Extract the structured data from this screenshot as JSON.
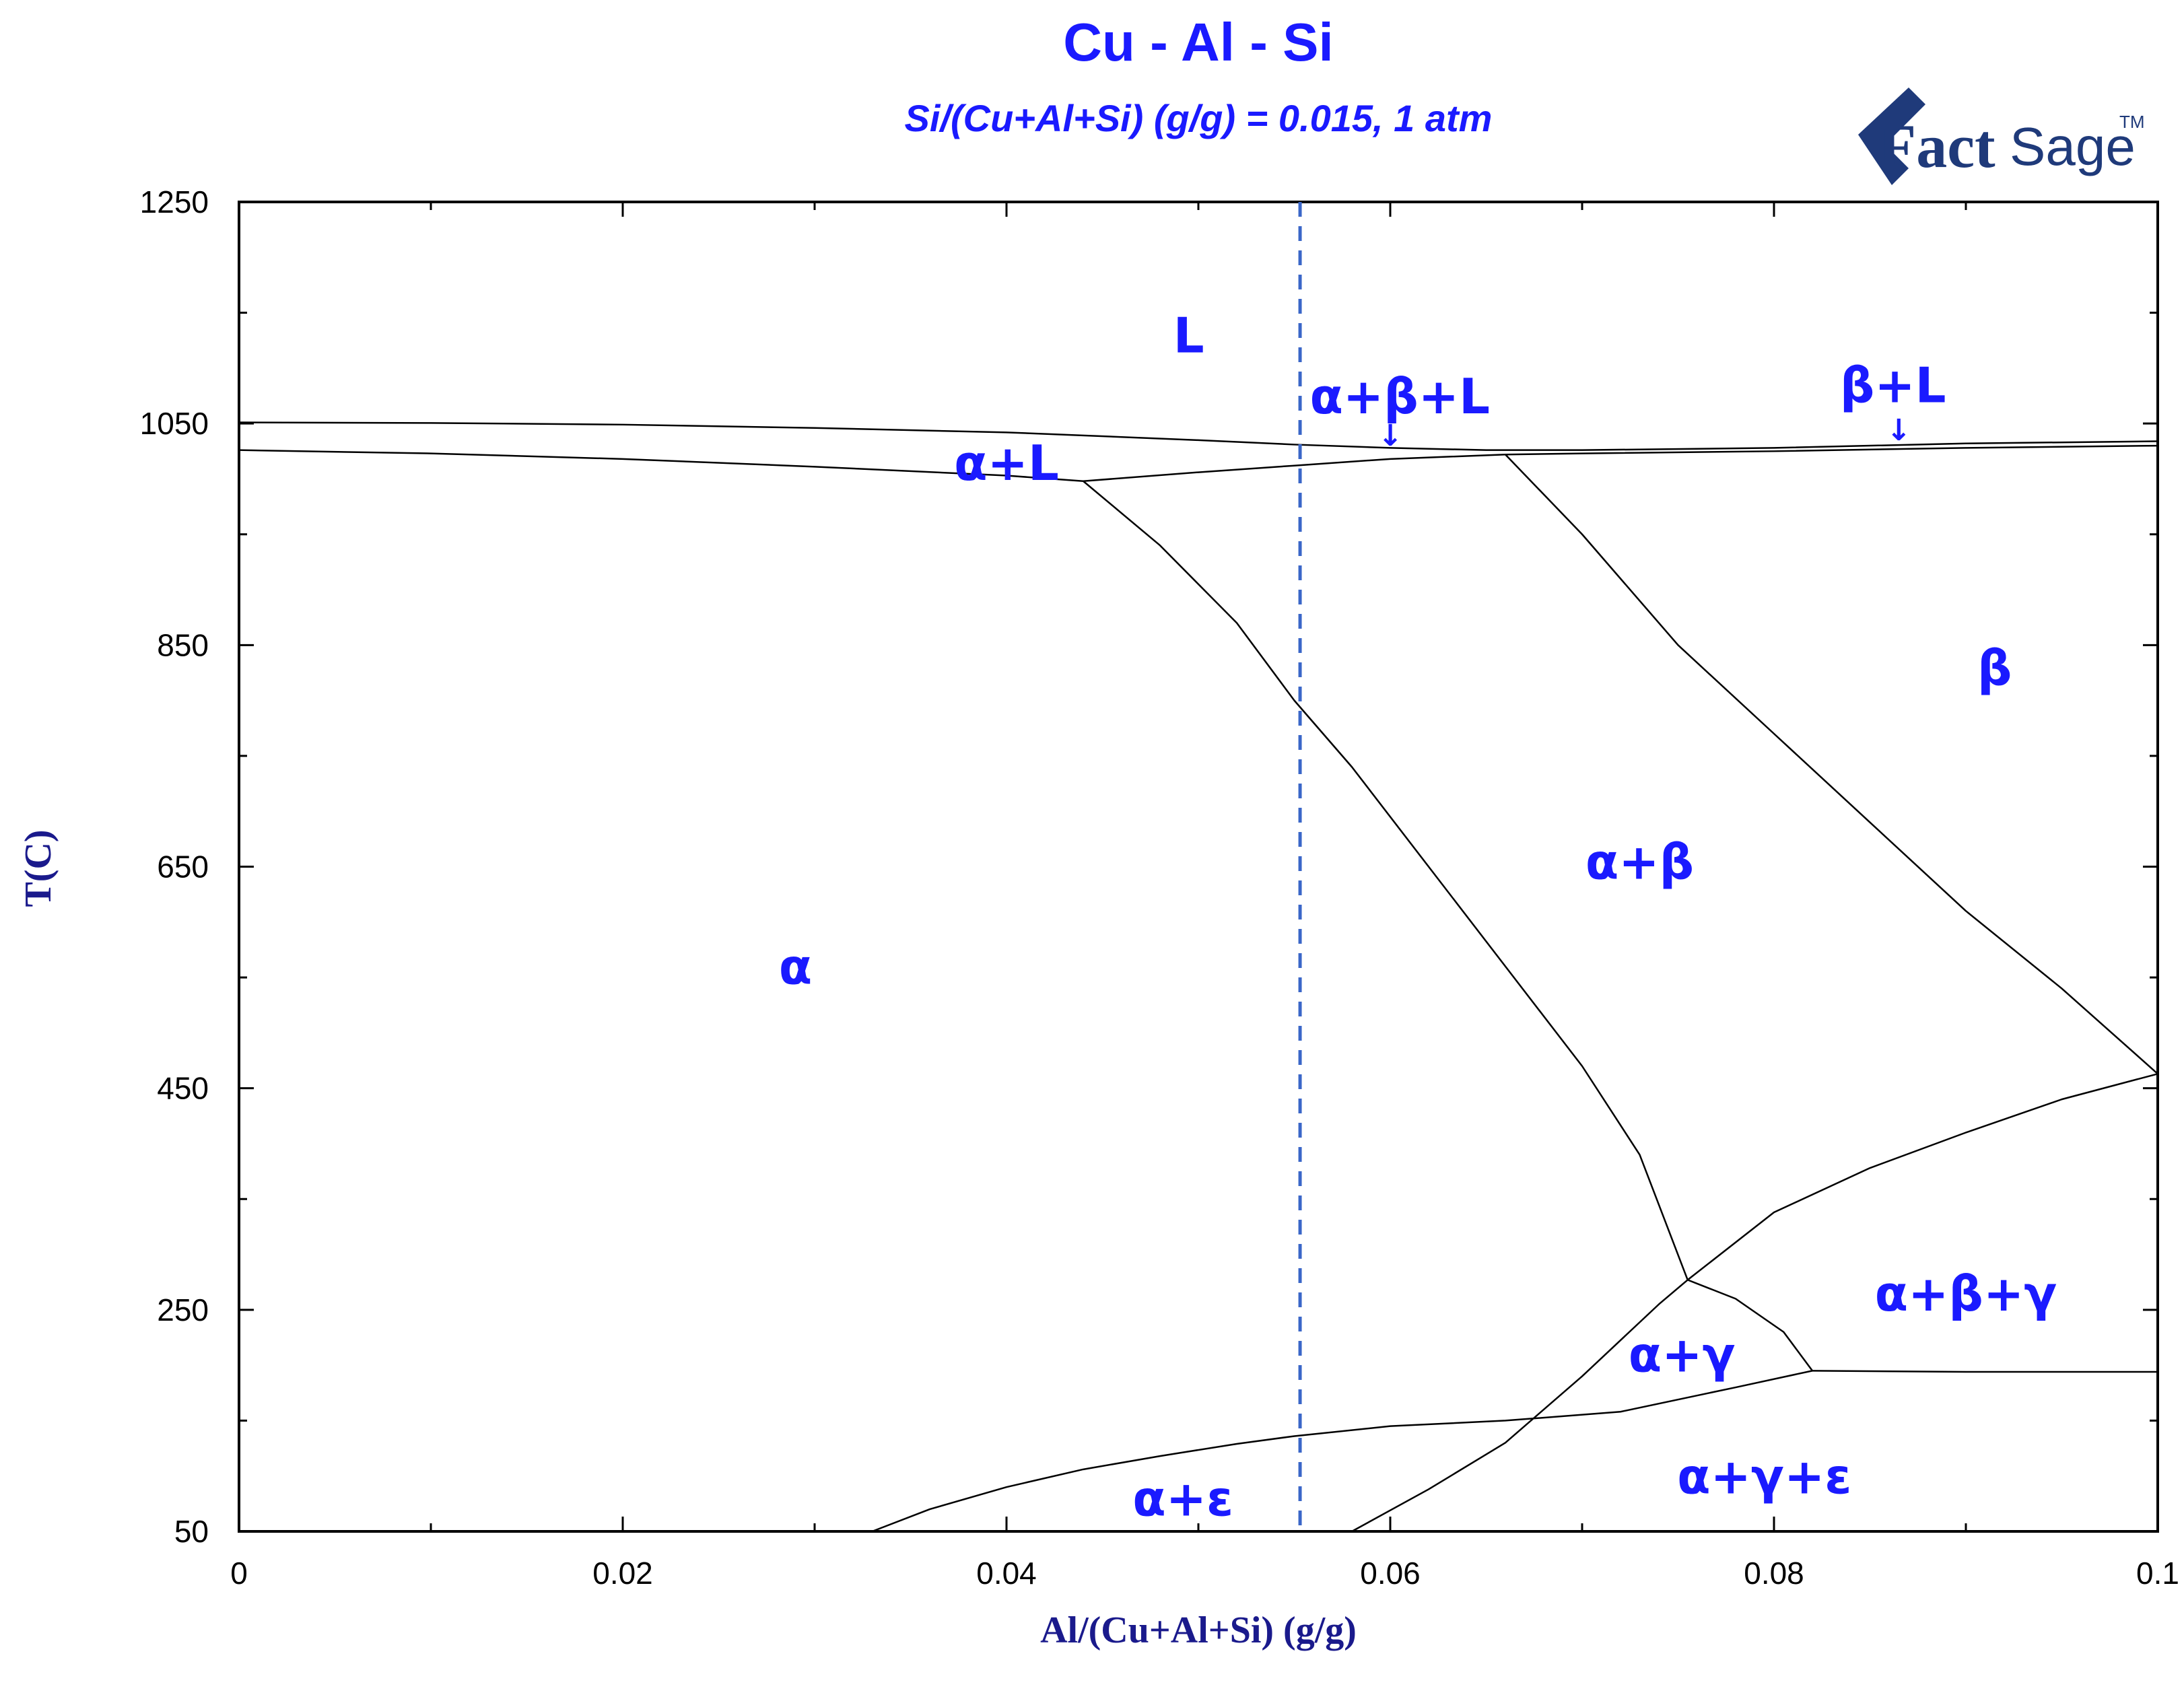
{
  "chart_data": {
    "type": "line",
    "title": "Cu - Al - Si",
    "subtitle": "Si/(Cu+Al+Si) (g/g) = 0.015, 1 atm",
    "xlabel": "Al/(Cu+Al+Si) (g/g)",
    "ylabel": "T(C)",
    "xlim": [
      0,
      0.1
    ],
    "ylim": [
      50,
      1250
    ],
    "xticks": [
      0,
      0.02,
      0.04,
      0.06,
      0.08,
      0.1
    ],
    "xtick_labels": [
      "0",
      "0.02",
      "0.04",
      "0.06",
      "0.08",
      "0.1"
    ],
    "yticks": [
      50,
      250,
      450,
      650,
      850,
      1050,
      1250
    ],
    "ytick_labels": [
      "50",
      "250",
      "450",
      "650",
      "850",
      "1050",
      "1250"
    ],
    "grid": false,
    "line_color": "#000000",
    "marker_line": {
      "x": 0.0553,
      "color": "#3a66c8",
      "style": "dashed"
    },
    "boundaries": [
      {
        "x": [
          0,
          0.01,
          0.02,
          0.03,
          0.04,
          0.05,
          0.055,
          0.06,
          0.065,
          0.07,
          0.08,
          0.09,
          0.1
        ],
        "y": [
          1051,
          1050.5,
          1049,
          1046,
          1042,
          1035,
          1031,
          1028,
          1026,
          1026,
          1028,
          1032,
          1034
        ]
      },
      {
        "x": [
          0,
          0.01,
          0.02,
          0.03,
          0.04,
          0.044
        ],
        "y": [
          1026,
          1023,
          1018,
          1011,
          1003,
          998
        ]
      },
      {
        "x": [
          0.044,
          0.05,
          0.055,
          0.06,
          0.066
        ],
        "y": [
          998,
          1006,
          1012,
          1018,
          1022
        ]
      },
      {
        "x": [
          0.066,
          0.07,
          0.08,
          0.09,
          0.1
        ],
        "y": [
          1022,
          1023,
          1025,
          1028,
          1030
        ]
      },
      {
        "x": [
          0.044,
          0.048,
          0.052,
          0.055,
          0.058,
          0.062,
          0.066,
          0.07,
          0.073,
          0.0755
        ],
        "y": [
          998,
          940,
          870,
          800,
          740,
          650,
          560,
          470,
          390,
          277
        ]
      },
      {
        "x": [
          0.066,
          0.07,
          0.075,
          0.08,
          0.085,
          0.09,
          0.095,
          0.1
        ],
        "y": [
          1022,
          950,
          850,
          770,
          690,
          610,
          540,
          463
        ]
      },
      {
        "x": [
          0.0755,
          0.08,
          0.085,
          0.09,
          0.095,
          0.1
        ],
        "y": [
          277,
          338,
          378,
          410,
          440,
          463
        ]
      },
      {
        "x": [
          0.0755,
          0.078,
          0.0805,
          0.082
        ],
        "y": [
          277,
          260,
          230,
          195
        ]
      },
      {
        "x": [
          0.082,
          0.09,
          0.1
        ],
        "y": [
          195,
          194,
          194
        ]
      },
      {
        "x": [
          0.058,
          0.062,
          0.066,
          0.07,
          0.074,
          0.0755
        ],
        "y": [
          50,
          88,
          130,
          190,
          255,
          277
        ]
      },
      {
        "x": [
          0.033,
          0.036,
          0.04,
          0.044,
          0.048,
          0.052,
          0.055,
          0.06,
          0.066,
          0.072,
          0.078,
          0.082
        ],
        "y": [
          50,
          70,
          90,
          106,
          118,
          129,
          136,
          145,
          150,
          158,
          180,
          195
        ]
      }
    ],
    "region_labels": [
      {
        "text": "L",
        "x": 0.0495,
        "y": 1130
      },
      {
        "text": "α+β+L",
        "x": 0.0605,
        "y": 1075
      },
      {
        "text": "β+L",
        "x": 0.0862,
        "y": 1085
      },
      {
        "text": "α+L",
        "x": 0.04,
        "y": 1015
      },
      {
        "text": "β",
        "x": 0.0915,
        "y": 830
      },
      {
        "text": "α+β",
        "x": 0.073,
        "y": 655
      },
      {
        "text": "α",
        "x": 0.029,
        "y": 560
      },
      {
        "text": "α+β+γ",
        "x": 0.09,
        "y": 265
      },
      {
        "text": "α+γ",
        "x": 0.0752,
        "y": 210
      },
      {
        "text": "α+γ+ε",
        "x": 0.0795,
        "y": 100
      },
      {
        "text": "α+ε",
        "x": 0.0492,
        "y": 80
      }
    ],
    "arrows": [
      {
        "x": 0.06,
        "y_from": 1041,
        "y_to": 1030
      },
      {
        "x": 0.0865,
        "y_from": 1046,
        "y_to": 1035
      }
    ],
    "arrow_glyph": "↓"
  },
  "logo": {
    "text_main": "Fact",
    "text_sage": "Sage",
    "text_tm": "TM",
    "color": "#1f3a7a"
  }
}
